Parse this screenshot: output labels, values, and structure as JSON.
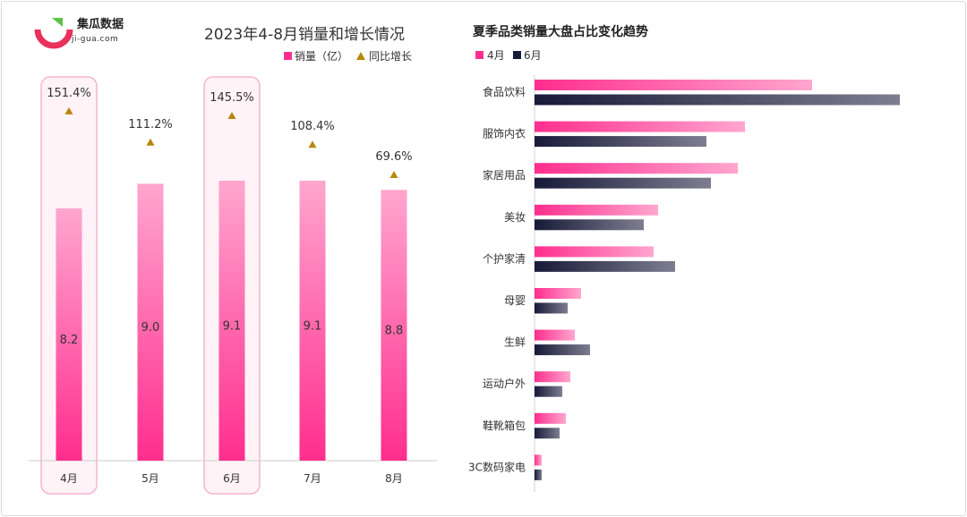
{
  "logo": {
    "name": "集瓜数据",
    "domain": "ji-gua.com"
  },
  "colors": {
    "pink_light": "#ffa6cf",
    "pink": "#ff2e8e",
    "navy": "#171a38",
    "navy_light": "#7e7d90",
    "growth_marker": "#b8860b",
    "highlight_border": "#f7b3d2",
    "highlight_fill": "#fff3f8"
  },
  "chart_data": [
    {
      "type": "bar",
      "title": "2023年4-8月销量和增长情况",
      "categories": [
        "4月",
        "5月",
        "6月",
        "7月",
        "8月"
      ],
      "series": [
        {
          "name": "销量（亿）",
          "values": [
            8.2,
            9.0,
            9.1,
            9.1,
            8.8
          ]
        },
        {
          "name": "同比增长",
          "values": [
            151.4,
            111.2,
            145.5,
            108.4,
            69.6
          ],
          "unit": "%"
        }
      ],
      "value_labels": [
        "8.2",
        "9.0",
        "9.1",
        "9.1",
        "8.8"
      ],
      "growth_labels": [
        "151.4%",
        "111.2%",
        "145.5%",
        "108.4%",
        "69.6%"
      ],
      "highlighted": [
        "4月",
        "6月"
      ],
      "legend": [
        "销量（亿）",
        "同比增长"
      ],
      "ylim": [
        0,
        12.5
      ]
    },
    {
      "type": "bar",
      "orientation": "horizontal",
      "title": "夏季品类销量大盘占比变化趋势",
      "categories": [
        "食品饮料",
        "服饰内衣",
        "家居用品",
        "美妆",
        "个护家清",
        "母婴",
        "生鲜",
        "运动户外",
        "鞋靴箱包",
        "3C数码家电"
      ],
      "series": [
        {
          "name": "4月",
          "values": [
            31.0,
            23.5,
            22.7,
            13.8,
            13.3,
            5.2,
            4.5,
            4.0,
            3.5,
            0.8
          ]
        },
        {
          "name": "6月",
          "values": [
            40.8,
            19.2,
            19.7,
            12.2,
            15.7,
            3.7,
            6.2,
            3.1,
            2.8,
            0.8
          ]
        }
      ],
      "legend": [
        "4月",
        "6月"
      ],
      "xlim": [
        0,
        45
      ]
    }
  ]
}
